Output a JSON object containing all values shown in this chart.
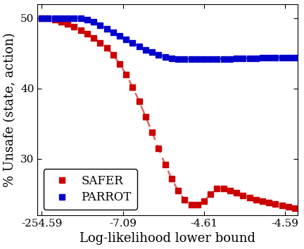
{
  "title": "",
  "xlabel": "Log-likelihood lower bound",
  "ylabel": "% Unsafe (state, action)",
  "xtick_labels": [
    "-254.59",
    "-7.09",
    "-4.61",
    "-4.59"
  ],
  "xtick_positions": [
    0,
    1,
    2,
    3
  ],
  "yticks": [
    30,
    40,
    50
  ],
  "ylim": [
    22,
    52
  ],
  "xlim": [
    -0.05,
    3.15
  ],
  "safer_x": [
    0.0,
    0.08,
    0.16,
    0.24,
    0.32,
    0.4,
    0.48,
    0.56,
    0.64,
    0.72,
    0.8,
    0.88,
    0.96,
    1.04,
    1.12,
    1.2,
    1.28,
    1.36,
    1.44,
    1.52,
    1.6,
    1.68,
    1.76,
    1.84,
    1.92,
    2.0,
    2.08,
    2.16,
    2.24,
    2.32,
    2.4,
    2.48,
    2.56,
    2.64,
    2.72,
    2.8,
    2.88,
    2.96,
    3.04,
    3.12
  ],
  "safer_y": [
    50.0,
    50.0,
    49.8,
    49.5,
    49.2,
    48.8,
    48.3,
    47.8,
    47.2,
    46.5,
    45.8,
    44.8,
    43.5,
    42.0,
    40.2,
    38.2,
    36.0,
    33.8,
    31.5,
    29.2,
    27.2,
    25.5,
    24.2,
    23.5,
    23.5,
    24.0,
    25.0,
    25.8,
    25.8,
    25.5,
    25.2,
    24.8,
    24.5,
    24.2,
    24.0,
    23.8,
    23.6,
    23.4,
    23.2,
    23.0
  ],
  "parrot_x": [
    0.0,
    0.08,
    0.16,
    0.24,
    0.32,
    0.4,
    0.48,
    0.56,
    0.64,
    0.72,
    0.8,
    0.88,
    0.96,
    1.04,
    1.12,
    1.2,
    1.28,
    1.36,
    1.44,
    1.52,
    1.6,
    1.68,
    1.76,
    1.84,
    1.92,
    2.0,
    2.08,
    2.16,
    2.24,
    2.32,
    2.4,
    2.48,
    2.56,
    2.64,
    2.72,
    2.8,
    2.88,
    2.96,
    3.04,
    3.12
  ],
  "parrot_y": [
    50.0,
    50.0,
    50.0,
    50.0,
    50.0,
    50.0,
    50.0,
    49.8,
    49.5,
    49.0,
    48.5,
    48.0,
    47.5,
    47.0,
    46.5,
    46.0,
    45.5,
    45.2,
    44.8,
    44.5,
    44.3,
    44.2,
    44.2,
    44.2,
    44.2,
    44.2,
    44.2,
    44.2,
    44.2,
    44.2,
    44.3,
    44.3,
    44.3,
    44.3,
    44.4,
    44.4,
    44.4,
    44.4,
    44.4,
    44.4
  ],
  "safer_color": "#cc0000",
  "parrot_color": "#0000cc",
  "linewidth": 1.8,
  "legend_fontsize": 12,
  "tick_fontsize": 11,
  "label_fontsize": 13
}
